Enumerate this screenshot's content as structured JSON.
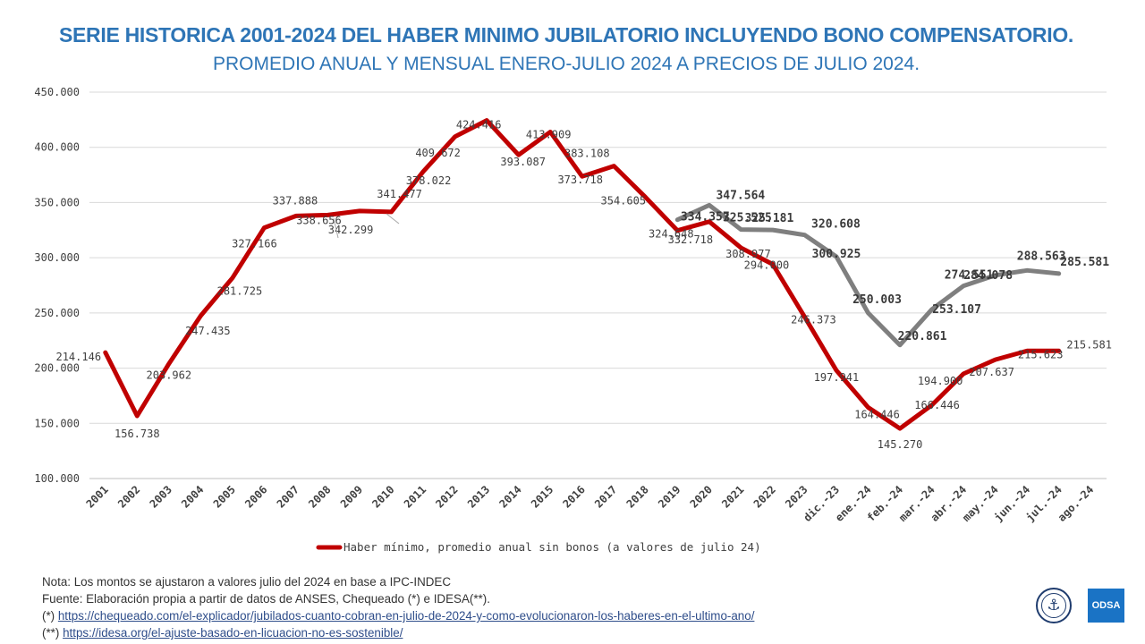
{
  "title": "SERIE HISTORICA 2001-2024 DEL HABER MINIMO JUBILATORIO INCLUYENDO BONO COMPENSATORIO.",
  "subtitle": "PROMEDIO ANUAL Y MENSUAL ENERO-JULIO 2024 A PRECIOS DE JULIO 2024.",
  "notes": {
    "line1": "Nota: Los montos se ajustaron a valores julio del 2024 en base a IPC-INDEC",
    "line2": "Fuente: Elaboración propia a partir de datos de ANSES, Chequeado (*) e IDESA(**).",
    "link1_prefix": "(*) ",
    "link1": "https://chequeado.com/el-explicador/jubilados-cuanto-cobran-en-julio-de-2024-y-como-evolucionaron-los-haberes-en-el-ultimo-ano/",
    "link2_prefix": "(**) ",
    "link2": "https://idesa.org/el-ajuste-basado-en-licuacion-no-es-sostenible/"
  },
  "logos": {
    "odsa_text": "ODSA"
  },
  "colors": {
    "title": "#2e75b6",
    "series_red": "#c00000",
    "series_gray": "#7f7f7f",
    "grid": "#d9d9d9",
    "label": "#404040"
  },
  "chart_data": {
    "type": "line",
    "categories": [
      "2001",
      "2002",
      "2003",
      "2004",
      "2005",
      "2006",
      "2007",
      "2008",
      "2009",
      "2010",
      "2011",
      "2012",
      "2013",
      "2014",
      "2015",
      "2016",
      "2017",
      "2018",
      "2019",
      "2020",
      "2021",
      "2022",
      "2023",
      "dic.-23",
      "ene.-24",
      "feb.-24",
      "mar.-24",
      "abr.-24",
      "may.-24",
      "jun.-24",
      "jul.-24",
      "ago.-24"
    ],
    "ylim": [
      100000,
      450000
    ],
    "yticks": [
      "100.000",
      "150.000",
      "200.000",
      "250.000",
      "300.000",
      "350.000",
      "400.000",
      "450.000"
    ],
    "grid": true,
    "legend_position": "bottom",
    "series": [
      {
        "name": "Haber mínimo, promedio anual sin bonos (a valores de julio 24)",
        "color": "#c00000",
        "values": [
          214146,
          156738,
          203962,
          247435,
          281725,
          327166,
          337888,
          338656,
          342299,
          341477,
          378022,
          409672,
          424416,
          393087,
          413909,
          373718,
          383108,
          354605,
          324648,
          332718,
          308977,
          294000,
          246373,
          197941,
          164446,
          145270,
          166446,
          194900,
          207637,
          215623,
          215581,
          null
        ],
        "labels": [
          "214.146",
          "156.738",
          "203.962",
          "247.435",
          "281.725",
          "327.166",
          "337.888",
          "338.656",
          "342.299",
          "341.477",
          "378.022",
          "409.672",
          "424.416",
          "393.087",
          "413.909",
          "373.718",
          "383.108",
          "354.605",
          "324.648",
          "332.718",
          "308.977",
          "294.000",
          "246.373",
          "197.941",
          "164.446",
          "145.270",
          "166.446",
          "194.900",
          "207.637",
          "215.623",
          "215.581",
          ""
        ]
      },
      {
        "color": "#7f7f7f",
        "values": [
          null,
          null,
          null,
          null,
          null,
          null,
          null,
          null,
          null,
          null,
          null,
          null,
          null,
          null,
          null,
          null,
          null,
          null,
          334357,
          347564,
          325525,
          325181,
          320608,
          300925,
          250003,
          220861,
          253107,
          274551,
          284078,
          288563,
          285581,
          null
        ],
        "labels": [
          "",
          "",
          "",
          "",
          "",
          "",
          "",
          "",
          "",
          "",
          "",
          "",
          "",
          "",
          "",
          "",
          "",
          "",
          "334.357",
          "347.564",
          "325.525",
          "325.181",
          "320.608",
          "300.925",
          "250.003",
          "220.861",
          "253.107",
          "274.551",
          "284.078",
          "288.563",
          "285.581",
          ""
        ]
      }
    ]
  }
}
